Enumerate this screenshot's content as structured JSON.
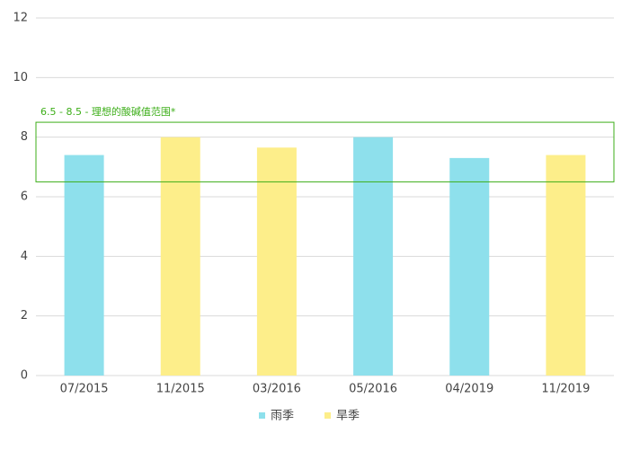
{
  "chart_data": {
    "type": "bar",
    "categories": [
      "07/2015",
      "11/2015",
      "03/2016",
      "05/2016",
      "04/2019",
      "11/2019"
    ],
    "series": [
      {
        "name": "雨季",
        "color": "#8ee0ec",
        "values": [
          7.4,
          null,
          null,
          8.0,
          7.3,
          null
        ]
      },
      {
        "name": "旱季",
        "color": "#fdee8a",
        "values": [
          null,
          8.0,
          7.65,
          null,
          null,
          7.4
        ]
      }
    ],
    "ylim": [
      0,
      12
    ],
    "yticks": [
      0,
      2,
      4,
      6,
      8,
      10,
      12
    ],
    "grid": true,
    "band": {
      "range": [
        6.5,
        8.5
      ],
      "label": "6.5 - 8.5 - 理想的酸碱值范围*",
      "color": "#3cae18"
    },
    "legend": "bottom"
  }
}
